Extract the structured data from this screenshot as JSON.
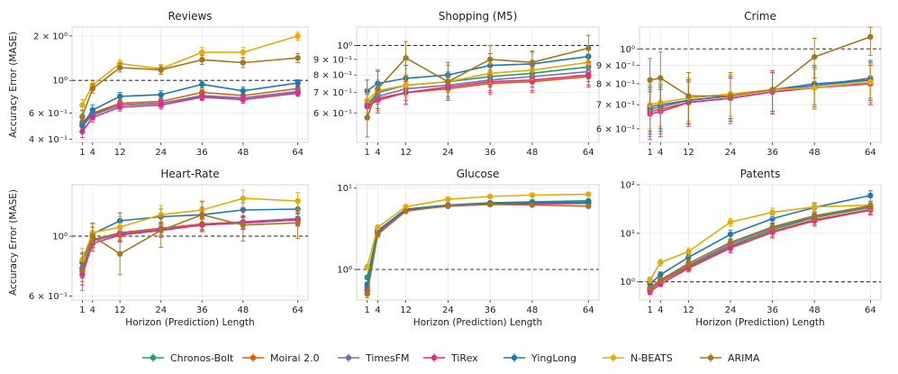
{
  "shared": {
    "x_ticks": [
      1,
      4,
      12,
      24,
      36,
      48,
      64
    ],
    "ylabel": "Accuracy Error (MASE)",
    "xlabel": "Horizon (Prediction) Length",
    "reference_line": 1.0
  },
  "legend": [
    {
      "name": "Chronos-Bolt",
      "color": "#1b9e77"
    },
    {
      "name": "Moirai 2.0",
      "color": "#d95f02"
    },
    {
      "name": "TimesFM",
      "color": "#7570b3"
    },
    {
      "name": "TiRex",
      "color": "#e7298a"
    },
    {
      "name": "YingLong",
      "color": "#1f78b4"
    },
    {
      "name": "N-BEATS",
      "color": "#e6ab02"
    },
    {
      "name": "ARIMA",
      "color": "#a6761d"
    }
  ],
  "chart_data": [
    {
      "type": "line",
      "title": "Reviews",
      "yscale": "log",
      "ylim": [
        0.38,
        2.3
      ],
      "yticks": [
        {
          "v": 0.4,
          "label": "4 × 10⁻¹"
        },
        {
          "v": 0.6,
          "label": "6 × 10⁻¹"
        },
        {
          "v": 1.0,
          "label": "10⁰"
        },
        {
          "v": 2.0,
          "label": "2 × 10⁰"
        }
      ],
      "x": [
        1,
        4,
        12,
        24,
        36,
        48,
        64
      ],
      "series": [
        {
          "name": "Chronos-Bolt",
          "values": [
            0.5,
            0.59,
            0.68,
            0.7,
            0.79,
            0.76,
            0.84
          ],
          "err": [
            0.04,
            0.04,
            0.04,
            0.04,
            0.04,
            0.04,
            0.04
          ]
        },
        {
          "name": "Moirai 2.0",
          "values": [
            0.52,
            0.6,
            0.7,
            0.72,
            0.83,
            0.79,
            0.88
          ],
          "err": [
            0.04,
            0.04,
            0.04,
            0.04,
            0.04,
            0.04,
            0.04
          ]
        },
        {
          "name": "TimesFM",
          "values": [
            0.49,
            0.58,
            0.68,
            0.7,
            0.78,
            0.76,
            0.84
          ],
          "err": [
            0.04,
            0.04,
            0.04,
            0.04,
            0.04,
            0.04,
            0.04
          ]
        },
        {
          "name": "TiRex",
          "values": [
            0.45,
            0.56,
            0.66,
            0.68,
            0.77,
            0.74,
            0.82
          ],
          "err": [
            0.04,
            0.04,
            0.04,
            0.04,
            0.04,
            0.04,
            0.04
          ]
        },
        {
          "name": "YingLong",
          "values": [
            0.5,
            0.63,
            0.78,
            0.8,
            0.94,
            0.85,
            0.96
          ],
          "err": [
            0.05,
            0.05,
            0.05,
            0.05,
            0.05,
            0.05,
            0.05
          ]
        },
        {
          "name": "N-BEATS",
          "values": [
            0.68,
            0.93,
            1.3,
            1.2,
            1.55,
            1.55,
            2.0
          ],
          "err": [
            0.06,
            0.06,
            0.08,
            0.08,
            0.12,
            0.12,
            0.12
          ]
        },
        {
          "name": "ARIMA",
          "values": [
            0.57,
            0.88,
            1.22,
            1.18,
            1.38,
            1.32,
            1.42
          ],
          "err": [
            0.06,
            0.06,
            0.08,
            0.08,
            0.1,
            0.1,
            0.1
          ]
        }
      ]
    },
    {
      "type": "line",
      "title": "Shopping (M5)",
      "yscale": "log",
      "ylim": [
        0.48,
        1.15
      ],
      "yticks": [
        {
          "v": 0.6,
          "label": "6 × 10⁻¹"
        },
        {
          "v": 0.7,
          "label": "7 × 10⁻¹"
        },
        {
          "v": 0.8,
          "label": "8 × 10⁻¹"
        },
        {
          "v": 0.9,
          "label": "9 × 10⁻¹"
        },
        {
          "v": 1.0,
          "label": "10⁰"
        }
      ],
      "x": [
        1,
        4,
        12,
        24,
        36,
        48,
        64
      ],
      "series": [
        {
          "name": "Chronos-Bolt",
          "values": [
            0.64,
            0.7,
            0.74,
            0.76,
            0.79,
            0.81,
            0.85
          ],
          "err": [
            0.06,
            0.06,
            0.06,
            0.06,
            0.06,
            0.06,
            0.06
          ]
        },
        {
          "name": "Moirai 2.0",
          "values": [
            0.63,
            0.67,
            0.7,
            0.72,
            0.75,
            0.76,
            0.79
          ],
          "err": [
            0.06,
            0.06,
            0.06,
            0.06,
            0.06,
            0.06,
            0.06
          ]
        },
        {
          "name": "TimesFM",
          "values": [
            0.64,
            0.68,
            0.72,
            0.74,
            0.77,
            0.79,
            0.82
          ],
          "err": [
            0.06,
            0.06,
            0.06,
            0.06,
            0.06,
            0.06,
            0.06
          ]
        },
        {
          "name": "TiRex",
          "values": [
            0.63,
            0.66,
            0.7,
            0.73,
            0.76,
            0.77,
            0.8
          ],
          "err": [
            0.06,
            0.06,
            0.06,
            0.06,
            0.06,
            0.06,
            0.06
          ]
        },
        {
          "name": "YingLong",
          "values": [
            0.71,
            0.75,
            0.78,
            0.8,
            0.86,
            0.87,
            0.92
          ],
          "err": [
            0.06,
            0.08,
            0.08,
            0.08,
            0.08,
            0.08,
            0.08
          ]
        },
        {
          "name": "N-BEATS",
          "values": [
            0.66,
            0.71,
            0.74,
            0.76,
            0.81,
            0.83,
            0.88
          ],
          "err": [
            0.06,
            0.06,
            0.06,
            0.06,
            0.06,
            0.06,
            0.06
          ]
        },
        {
          "name": "ARIMA",
          "values": [
            0.58,
            0.72,
            0.91,
            0.76,
            0.9,
            0.88,
            0.98
          ],
          "err": [
            0.08,
            0.1,
            0.12,
            0.1,
            0.1,
            0.08,
            0.1
          ]
        }
      ]
    },
    {
      "type": "line",
      "title": "Crime",
      "yscale": "log",
      "ylim": [
        0.55,
        1.15
      ],
      "yticks": [
        {
          "v": 0.6,
          "label": "6 × 10⁻¹"
        },
        {
          "v": 0.7,
          "label": "7 × 10⁻¹"
        },
        {
          "v": 0.8,
          "label": "8 × 10⁻¹"
        },
        {
          "v": 0.9,
          "label": "9 × 10⁻¹"
        },
        {
          "v": 1.0,
          "label": "10⁰"
        }
      ],
      "x": [
        1,
        4,
        12,
        24,
        36,
        48,
        64
      ],
      "series": [
        {
          "name": "Chronos-Bolt",
          "values": [
            0.68,
            0.69,
            0.72,
            0.74,
            0.77,
            0.79,
            0.82
          ],
          "err": [
            0.1,
            0.1,
            0.1,
            0.1,
            0.1,
            0.1,
            0.1
          ]
        },
        {
          "name": "Moirai 2.0",
          "values": [
            0.67,
            0.68,
            0.71,
            0.73,
            0.76,
            0.78,
            0.81
          ],
          "err": [
            0.1,
            0.1,
            0.1,
            0.1,
            0.1,
            0.1,
            0.1
          ]
        },
        {
          "name": "TimesFM",
          "values": [
            0.68,
            0.69,
            0.72,
            0.74,
            0.77,
            0.79,
            0.83
          ],
          "err": [
            0.1,
            0.1,
            0.1,
            0.1,
            0.1,
            0.1,
            0.1
          ]
        },
        {
          "name": "TiRex",
          "values": [
            0.66,
            0.67,
            0.71,
            0.73,
            0.76,
            0.78,
            0.8
          ],
          "err": [
            0.1,
            0.1,
            0.1,
            0.1,
            0.1,
            0.1,
            0.1
          ]
        },
        {
          "name": "YingLong",
          "values": [
            0.69,
            0.7,
            0.72,
            0.74,
            0.77,
            0.8,
            0.82
          ],
          "err": [
            0.1,
            0.1,
            0.1,
            0.1,
            0.1,
            0.1,
            0.1
          ]
        },
        {
          "name": "N-BEATS",
          "values": [
            0.7,
            0.71,
            0.73,
            0.75,
            0.77,
            0.78,
            0.81
          ],
          "err": [
            0.1,
            0.1,
            0.1,
            0.1,
            0.1,
            0.1,
            0.1
          ]
        },
        {
          "name": "ARIMA",
          "values": [
            0.82,
            0.83,
            0.74,
            0.74,
            0.77,
            0.95,
            1.08
          ],
          "err": [
            0.12,
            0.15,
            0.12,
            0.12,
            0.1,
            0.12,
            0.12
          ]
        }
      ]
    },
    {
      "type": "line",
      "title": "Heart-Rate",
      "yscale": "log",
      "ylim": [
        0.58,
        1.55
      ],
      "yticks": [
        {
          "v": 0.6,
          "label": "6 × 10⁻¹"
        },
        {
          "v": 1.0,
          "label": "10⁰"
        }
      ],
      "x": [
        1,
        4,
        12,
        24,
        36,
        48,
        64
      ],
      "series": [
        {
          "name": "Chronos-Bolt",
          "values": [
            0.76,
            0.97,
            1.02,
            1.06,
            1.1,
            1.12,
            1.15
          ],
          "err": [
            0.06,
            0.06,
            0.06,
            0.06,
            0.06,
            0.06,
            0.06
          ]
        },
        {
          "name": "Moirai 2.0",
          "values": [
            0.74,
            0.97,
            1.03,
            1.07,
            1.11,
            1.13,
            1.16
          ],
          "err": [
            0.06,
            0.06,
            0.06,
            0.06,
            0.06,
            0.06,
            0.06
          ]
        },
        {
          "name": "TimesFM",
          "values": [
            0.76,
            0.96,
            1.02,
            1.06,
            1.1,
            1.13,
            1.16
          ],
          "err": [
            0.06,
            0.06,
            0.06,
            0.06,
            0.06,
            0.06,
            0.06
          ]
        },
        {
          "name": "TiRex",
          "values": [
            0.72,
            0.94,
            1.01,
            1.05,
            1.1,
            1.12,
            1.15
          ],
          "err": [
            0.06,
            0.06,
            0.06,
            0.06,
            0.06,
            0.06,
            0.06
          ]
        },
        {
          "name": "YingLong",
          "values": [
            0.8,
            1.02,
            1.14,
            1.18,
            1.2,
            1.25,
            1.26
          ],
          "err": [
            0.06,
            0.06,
            0.08,
            0.08,
            0.08,
            0.08,
            0.08
          ]
        },
        {
          "name": "N-BEATS",
          "values": [
            0.82,
            1.03,
            1.08,
            1.2,
            1.25,
            1.38,
            1.35
          ],
          "err": [
            0.08,
            0.08,
            0.1,
            0.1,
            0.1,
            0.1,
            0.1
          ]
        },
        {
          "name": "ARIMA",
          "values": [
            0.75,
            1.0,
            0.86,
            1.05,
            1.2,
            1.1,
            1.12
          ],
          "err": [
            0.12,
            0.12,
            0.14,
            0.14,
            0.14,
            0.14,
            0.14
          ]
        }
      ]
    },
    {
      "type": "line",
      "title": "Glucose",
      "yscale": "log",
      "ylim": [
        0.42,
        11
      ],
      "yticks": [
        {
          "v": 1.0,
          "label": "10⁰"
        },
        {
          "v": 10.0,
          "label": "10¹"
        }
      ],
      "x": [
        1,
        4,
        12,
        24,
        36,
        48,
        64
      ],
      "series": [
        {
          "name": "Chronos-Bolt",
          "values": [
            0.8,
            3.0,
            5.5,
            6.2,
            6.6,
            6.8,
            7.0
          ],
          "err": [
            0.05,
            0.2,
            0.3,
            0.3,
            0.3,
            0.3,
            0.3
          ]
        },
        {
          "name": "Moirai 2.0",
          "values": [
            0.6,
            2.9,
            5.4,
            6.1,
            6.4,
            6.5,
            6.6
          ],
          "err": [
            0.05,
            0.2,
            0.3,
            0.3,
            0.3,
            0.3,
            0.3
          ]
        },
        {
          "name": "TimesFM",
          "values": [
            0.55,
            2.9,
            5.4,
            6.1,
            6.4,
            6.5,
            6.6
          ],
          "err": [
            0.05,
            0.2,
            0.3,
            0.3,
            0.3,
            0.3,
            0.3
          ]
        },
        {
          "name": "TiRex",
          "values": [
            0.55,
            2.8,
            5.3,
            6.0,
            6.3,
            6.4,
            6.5
          ],
          "err": [
            0.05,
            0.2,
            0.3,
            0.3,
            0.3,
            0.3,
            0.3
          ]
        },
        {
          "name": "YingLong",
          "values": [
            0.65,
            3.0,
            5.5,
            6.2,
            6.5,
            6.6,
            6.7
          ],
          "err": [
            0.05,
            0.2,
            0.3,
            0.3,
            0.3,
            0.3,
            0.3
          ]
        },
        {
          "name": "N-BEATS",
          "values": [
            1.08,
            3.3,
            5.9,
            7.3,
            7.9,
            8.2,
            8.4
          ],
          "err": [
            0.06,
            0.2,
            0.3,
            0.3,
            0.3,
            0.3,
            0.3
          ]
        },
        {
          "name": "ARIMA",
          "values": [
            0.5,
            2.7,
            5.2,
            6.1,
            6.3,
            6.2,
            6.0
          ],
          "err": [
            0.05,
            0.2,
            0.3,
            0.3,
            0.3,
            0.3,
            0.3
          ]
        }
      ]
    },
    {
      "type": "line",
      "title": "Patents",
      "yscale": "log",
      "ylim": [
        0.42,
        100
      ],
      "yticks": [
        {
          "v": 1.0,
          "label": "10⁰"
        },
        {
          "v": 10.0,
          "label": "10¹"
        },
        {
          "v": 100.0,
          "label": "10²"
        }
      ],
      "x": [
        1,
        4,
        12,
        24,
        36,
        48,
        64
      ],
      "series": [
        {
          "name": "Chronos-Bolt",
          "values": [
            0.7,
            1.0,
            2.1,
            5.5,
            12.0,
            21.0,
            34.0
          ],
          "err": [
            0.08,
            0.1,
            0.3,
            1.0,
            2.5,
            4.0,
            6.0
          ]
        },
        {
          "name": "Moirai 2.0",
          "values": [
            0.68,
            1.0,
            2.0,
            5.2,
            11.0,
            19.0,
            31.0
          ],
          "err": [
            0.08,
            0.1,
            0.3,
            1.0,
            2.5,
            4.0,
            6.0
          ]
        },
        {
          "name": "TimesFM",
          "values": [
            0.72,
            1.05,
            2.2,
            6.0,
            13.0,
            22.0,
            36.0
          ],
          "err": [
            0.08,
            0.1,
            0.3,
            1.0,
            2.5,
            4.0,
            6.0
          ]
        },
        {
          "name": "TiRex",
          "values": [
            0.62,
            0.9,
            1.9,
            5.0,
            10.5,
            18.0,
            30.0
          ],
          "err": [
            0.08,
            0.1,
            0.3,
            1.0,
            2.5,
            4.0,
            6.0
          ]
        },
        {
          "name": "YingLong",
          "values": [
            0.9,
            1.4,
            3.2,
            9.5,
            20.0,
            34.0,
            60.0
          ],
          "err": [
            0.1,
            0.2,
            0.5,
            2.0,
            4.0,
            7.0,
            15.0
          ]
        },
        {
          "name": "N-BEATS",
          "values": [
            1.1,
            2.5,
            4.2,
            17.0,
            27.0,
            35.0,
            38.0
          ],
          "err": [
            0.15,
            0.4,
            0.8,
            3.0,
            6.0,
            8.0,
            8.0
          ]
        },
        {
          "name": "ARIMA",
          "values": [
            0.75,
            1.1,
            2.4,
            6.5,
            13.5,
            23.0,
            37.0
          ],
          "err": [
            0.08,
            0.15,
            0.4,
            1.2,
            3.0,
            5.0,
            8.0
          ]
        }
      ]
    }
  ]
}
